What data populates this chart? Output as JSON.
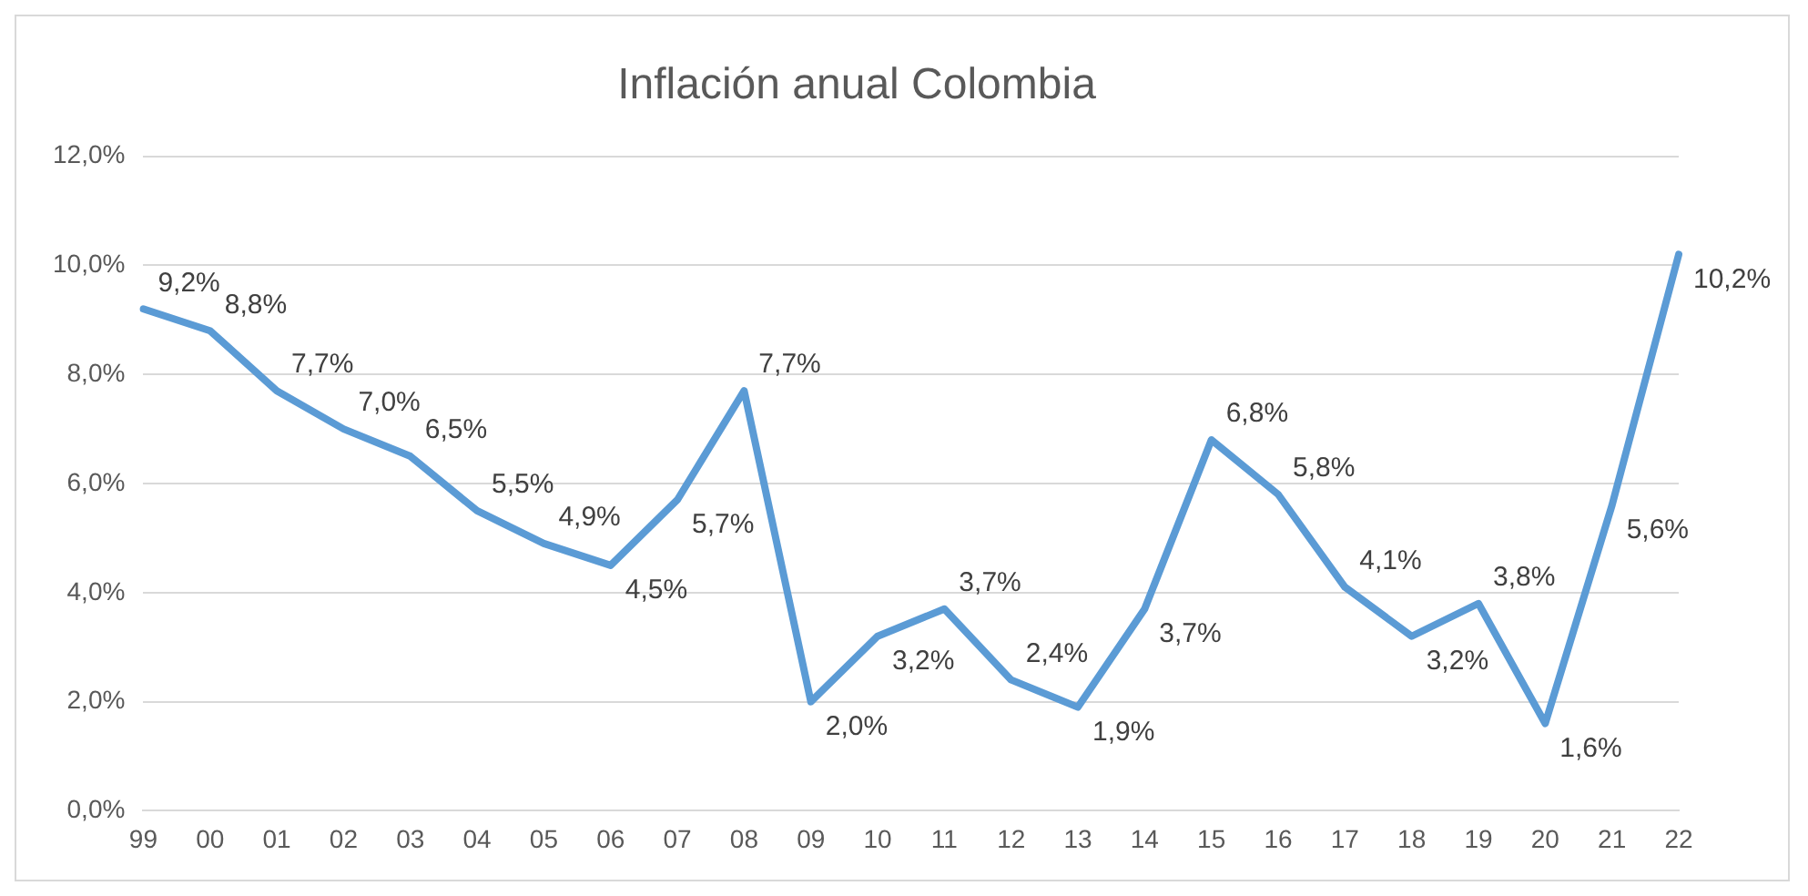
{
  "chart_data": {
    "type": "line",
    "title": "Inflación anual Colombia",
    "categories": [
      "99",
      "00",
      "01",
      "02",
      "03",
      "04",
      "05",
      "06",
      "07",
      "08",
      "09",
      "10",
      "11",
      "12",
      "13",
      "14",
      "15",
      "16",
      "17",
      "18",
      "19",
      "20",
      "21",
      "22"
    ],
    "series": [
      {
        "color": "#5b9bd5",
        "values": [
          9.2,
          8.8,
          7.7,
          7.0,
          6.5,
          5.5,
          4.9,
          4.5,
          5.7,
          7.7,
          2.0,
          3.2,
          3.7,
          2.4,
          1.9,
          3.7,
          6.8,
          5.8,
          4.1,
          3.2,
          3.8,
          1.6,
          5.6,
          10.2
        ],
        "value_labels": [
          "9,2%",
          "8,8%",
          "7,7%",
          "7,0%",
          "6,5%",
          "5,5%",
          "4,9%",
          "4,5%",
          "5,7%",
          "7,7%",
          "2,0%",
          "3,2%",
          "3,7%",
          "2,4%",
          "1,9%",
          "3,7%",
          "6,8%",
          "5,8%",
          "4,1%",
          "3,2%",
          "3,8%",
          "1,6%",
          "5,6%",
          "10,2%"
        ]
      }
    ],
    "ylim": [
      0,
      12
    ],
    "yticks": [
      {
        "value": 0,
        "label": "0,0%"
      },
      {
        "value": 2,
        "label": "2,0%"
      },
      {
        "value": 4,
        "label": "4,0%"
      },
      {
        "value": 6,
        "label": "6,0%"
      },
      {
        "value": 8,
        "label": "8,0%"
      },
      {
        "value": 10,
        "label": "10,0%"
      },
      {
        "value": 12,
        "label": "12,0%"
      }
    ],
    "grid": "y",
    "legend": false,
    "marker": "none",
    "line_style": "solid"
  }
}
